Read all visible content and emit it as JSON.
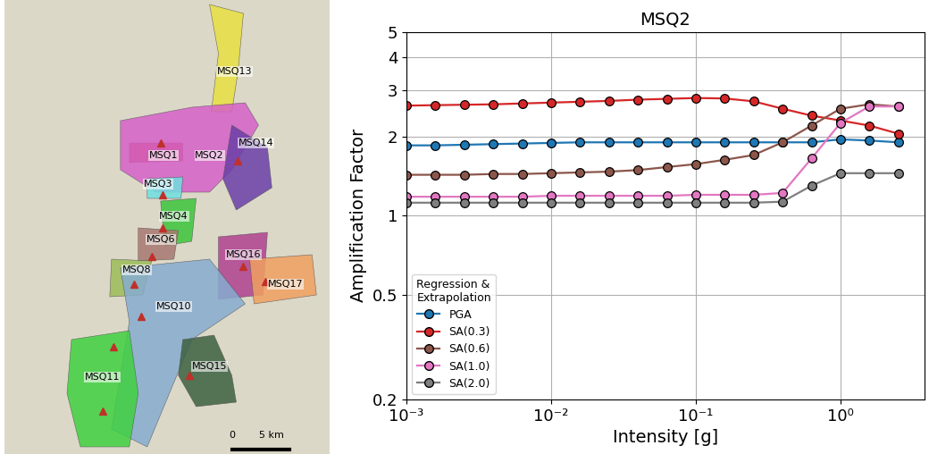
{
  "map": {
    "labels": [
      "MSQ13",
      "MSQ1",
      "MSQ2",
      "MSQ14",
      "MSQ3",
      "MSQ4",
      "MSQ6",
      "MSQ8",
      "MSQ16",
      "MSQ17",
      "MSQ10",
      "MSQ11",
      "MSQ15"
    ],
    "scale_labels": [
      "0",
      "5 km"
    ]
  },
  "chart_data": {
    "type": "line",
    "title": "MSQ2",
    "x_label": "Intensity [g]",
    "y_label": "Amplification Factor",
    "log": true,
    "grid": true,
    "legend": "lower left",
    "legend_title": "Regression &\nExtrapolation",
    "marker": "o",
    "x": [
      0.001,
      0.00158,
      0.00251,
      0.00398,
      0.00631,
      0.01,
      0.0158,
      0.0251,
      0.0398,
      0.0631,
      0.1,
      0.158,
      0.251,
      0.398,
      0.631,
      1.0,
      1.58,
      2.51
    ],
    "xlim": [
      0.001,
      3.8
    ],
    "xticks": [
      {
        "value": 0.001,
        "label": "10⁻³"
      },
      {
        "value": 0.01,
        "label": "10⁻²"
      },
      {
        "value": 0.1,
        "label": "10⁻¹"
      },
      {
        "value": 1,
        "label": "10⁰"
      }
    ],
    "ylim": [
      0.2,
      5
    ],
    "yticks": [
      0.2,
      0.5,
      1,
      2,
      3,
      4,
      5
    ],
    "series": [
      {
        "name": "PGA",
        "color": "#1f77b4",
        "values": [
          1.85,
          1.85,
          1.86,
          1.87,
          1.88,
          1.89,
          1.9,
          1.9,
          1.9,
          1.9,
          1.9,
          1.9,
          1.9,
          1.9,
          1.9,
          1.95,
          1.93,
          1.9
        ]
      },
      {
        "name": "SA(0.3)",
        "color": "#d62728",
        "values": [
          2.62,
          2.63,
          2.64,
          2.65,
          2.67,
          2.69,
          2.71,
          2.73,
          2.76,
          2.78,
          2.8,
          2.79,
          2.72,
          2.55,
          2.4,
          2.3,
          2.2,
          2.05
        ]
      },
      {
        "name": "SA(0.6)",
        "color": "#8c564b",
        "values": [
          1.43,
          1.43,
          1.43,
          1.44,
          1.44,
          1.45,
          1.46,
          1.47,
          1.49,
          1.53,
          1.57,
          1.63,
          1.7,
          1.9,
          2.2,
          2.55,
          2.65,
          2.6
        ]
      },
      {
        "name": "SA(1.0)",
        "color": "#e377c2",
        "values": [
          1.18,
          1.18,
          1.18,
          1.18,
          1.18,
          1.19,
          1.19,
          1.19,
          1.19,
          1.19,
          1.2,
          1.2,
          1.2,
          1.22,
          1.65,
          2.25,
          2.6,
          2.6
        ]
      },
      {
        "name": "SA(2.0)",
        "color": "#7f7f7f",
        "values": [
          1.12,
          1.12,
          1.12,
          1.12,
          1.12,
          1.12,
          1.12,
          1.12,
          1.12,
          1.12,
          1.12,
          1.12,
          1.12,
          1.13,
          1.3,
          1.45,
          1.45,
          1.45
        ]
      }
    ]
  }
}
